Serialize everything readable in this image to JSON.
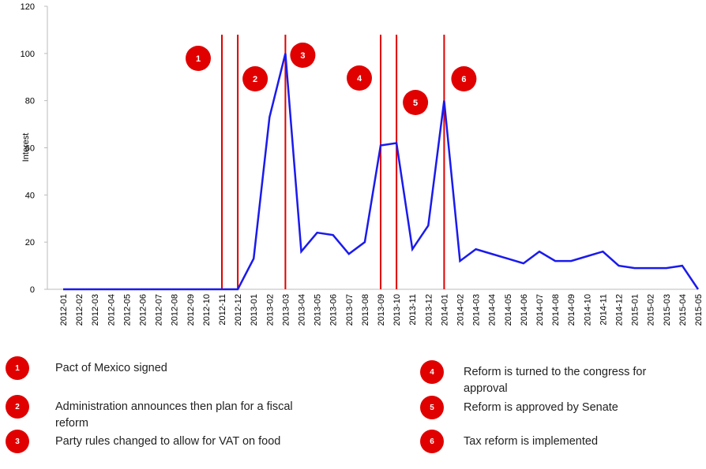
{
  "chart_data": {
    "type": "line",
    "y_label": "Interest",
    "categories": [
      "2012-01",
      "2012-02",
      "2012-03",
      "2012-04",
      "2012-05",
      "2012-06",
      "2012-07",
      "2012-08",
      "2012-09",
      "2012-10",
      "2012-11",
      "2012-12",
      "2013-01",
      "2013-02",
      "2013-03",
      "2013-04",
      "2013-05",
      "2013-06",
      "2013-07",
      "2013-08",
      "2013-09",
      "2013-10",
      "2013-11",
      "2013-12",
      "2014-01",
      "2014-02",
      "2014-03",
      "2014-04",
      "2014-05",
      "2014-06",
      "2014-07",
      "2014-08",
      "2014-09",
      "2014-10",
      "2014-11",
      "2014-12",
      "2015-01",
      "2015-02",
      "2015-03",
      "2015-04",
      "2015-05"
    ],
    "values": [
      0,
      0,
      0,
      0,
      0,
      0,
      0,
      0,
      0,
      0,
      0,
      0,
      13,
      73,
      100,
      16,
      24,
      23,
      15,
      20,
      61,
      62,
      17,
      27,
      80,
      12,
      17,
      15,
      13,
      11,
      16,
      12,
      12,
      14,
      16,
      10,
      9,
      9,
      9,
      10,
      0
    ],
    "color": "#1a1aee",
    "ylim": [
      0,
      120
    ],
    "yticks": [
      0,
      20,
      40,
      60,
      80,
      100,
      120
    ],
    "event_color": "#e00000",
    "events": [
      {
        "marker": "1",
        "date": "2012-11",
        "text": "Pact of Mexico signed"
      },
      {
        "marker": "2",
        "date": "2012-12",
        "text": "Administration announces then plan for a fiscal reform"
      },
      {
        "marker": "3",
        "date": "2013-03",
        "text": "Party rules changed to allow for VAT on food"
      },
      {
        "marker": "4",
        "date": "2013-09",
        "text": "Reform is turned to the congress for approval"
      },
      {
        "marker": "5",
        "date": "2013-10",
        "text": "Reform is approved by Senate"
      },
      {
        "marker": "6",
        "date": "2014-01",
        "text": "Tax reform is implemented"
      }
    ]
  }
}
